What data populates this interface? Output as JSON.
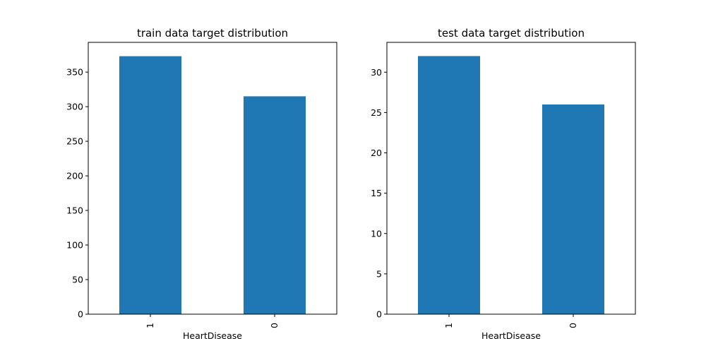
{
  "chart_data": [
    {
      "type": "bar",
      "title": "train data target distribution",
      "xlabel": "HeartDisease",
      "ylabel": "",
      "categories": [
        "1",
        "0"
      ],
      "values": [
        373,
        315
      ],
      "ylim": [
        0,
        393
      ],
      "yticks": [
        0,
        50,
        100,
        150,
        200,
        250,
        300,
        350
      ],
      "bar_color": "#1f77b4",
      "grid": false,
      "legend": "none"
    },
    {
      "type": "bar",
      "title": "test data target distribution",
      "xlabel": "HeartDisease",
      "ylabel": "",
      "categories": [
        "1",
        "0"
      ],
      "values": [
        32,
        26
      ],
      "ylim": [
        0,
        33.7
      ],
      "yticks": [
        0,
        5,
        10,
        15,
        20,
        25,
        30
      ],
      "bar_color": "#1f77b4",
      "grid": false,
      "legend": "none"
    }
  ]
}
